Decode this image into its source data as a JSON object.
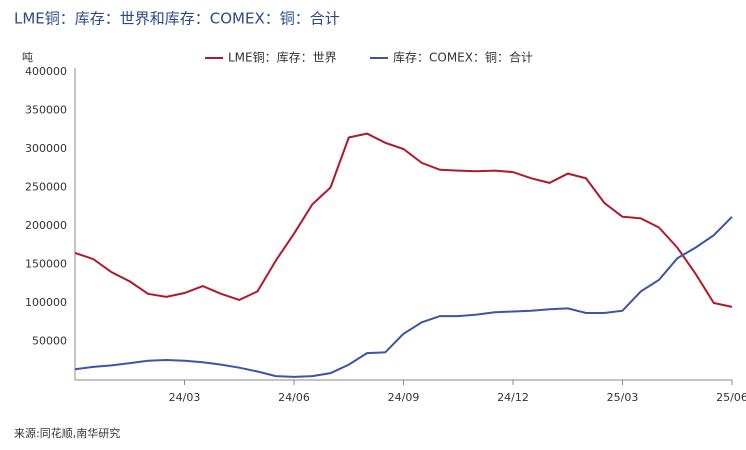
{
  "chart_data": {
    "type": "line",
    "title": "LME铜：库存：世界和库存：COMEX：铜：合计",
    "y_label": "吨",
    "source": "来源:同花顺,南华研究",
    "categories": [
      null,
      null,
      null,
      null,
      null,
      null,
      "24/03",
      null,
      null,
      null,
      null,
      null,
      "24/06",
      null,
      null,
      null,
      null,
      null,
      "24/09",
      null,
      null,
      null,
      null,
      null,
      "24/12",
      null,
      null,
      null,
      null,
      null,
      "25/03",
      null,
      null,
      null,
      null,
      null,
      "25/06"
    ],
    "series": [
      {
        "name": "LME铜：库存：世界",
        "color": "#b0182c",
        "values": [
          165000,
          157000,
          140000,
          128000,
          112000,
          108000,
          113000,
          122000,
          112000,
          104000,
          115000,
          155000,
          190000,
          228000,
          250000,
          315000,
          320000,
          308000,
          300000,
          282000,
          273000,
          272000,
          271000,
          272000,
          270000,
          262000,
          256000,
          268000,
          262000,
          230000,
          212000,
          210000,
          198000,
          172000,
          138000,
          100000,
          95000
        ]
      },
      {
        "name": "库存：COMEX：铜：合计",
        "color": "#3a56a4",
        "values": [
          14000,
          17000,
          19000,
          22000,
          25000,
          26000,
          25000,
          23000,
          20000,
          16000,
          11000,
          5000,
          4000,
          5000,
          9000,
          20000,
          35000,
          36000,
          60000,
          75000,
          83000,
          83000,
          85000,
          88000,
          89000,
          90000,
          92000,
          93000,
          87000,
          87000,
          90000,
          115000,
          130000,
          158000,
          172000,
          188000,
          212000
        ]
      }
    ],
    "ylim": [
      0,
      400000
    ],
    "yticks": [
      50000,
      100000,
      150000,
      200000,
      250000,
      300000,
      350000,
      400000
    ],
    "legend": "top",
    "grid": false
  }
}
